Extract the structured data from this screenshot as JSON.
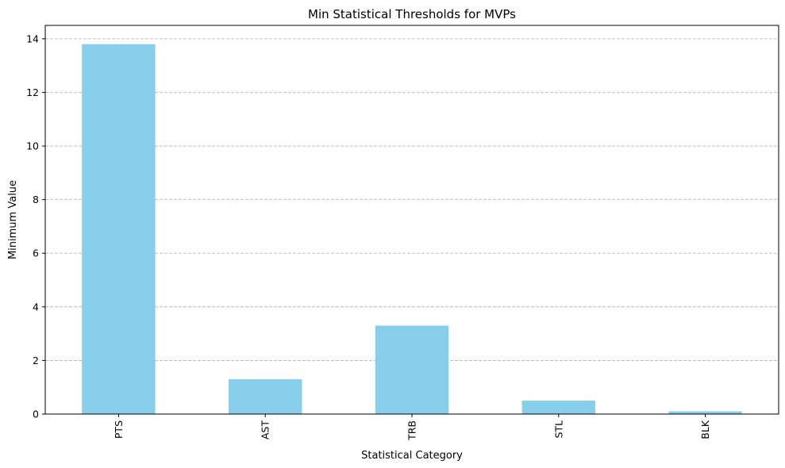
{
  "chart_data": {
    "type": "bar",
    "title": "Min Statistical Thresholds for MVPs",
    "xlabel": "Statistical Category",
    "ylabel": "Minimum Value",
    "categories": [
      "PTS",
      "AST",
      "TRB",
      "STL",
      "BLK"
    ],
    "values": [
      13.8,
      1.3,
      3.3,
      0.5,
      0.1
    ],
    "ylim": [
      0,
      14.5
    ],
    "yticks": [
      0,
      2,
      4,
      6,
      8,
      10,
      12,
      14
    ],
    "grid": "y-dashed",
    "bar_color": "#87CEEB",
    "grid_color": "#b0b0b0",
    "x_tick_rotation": "vertical"
  }
}
